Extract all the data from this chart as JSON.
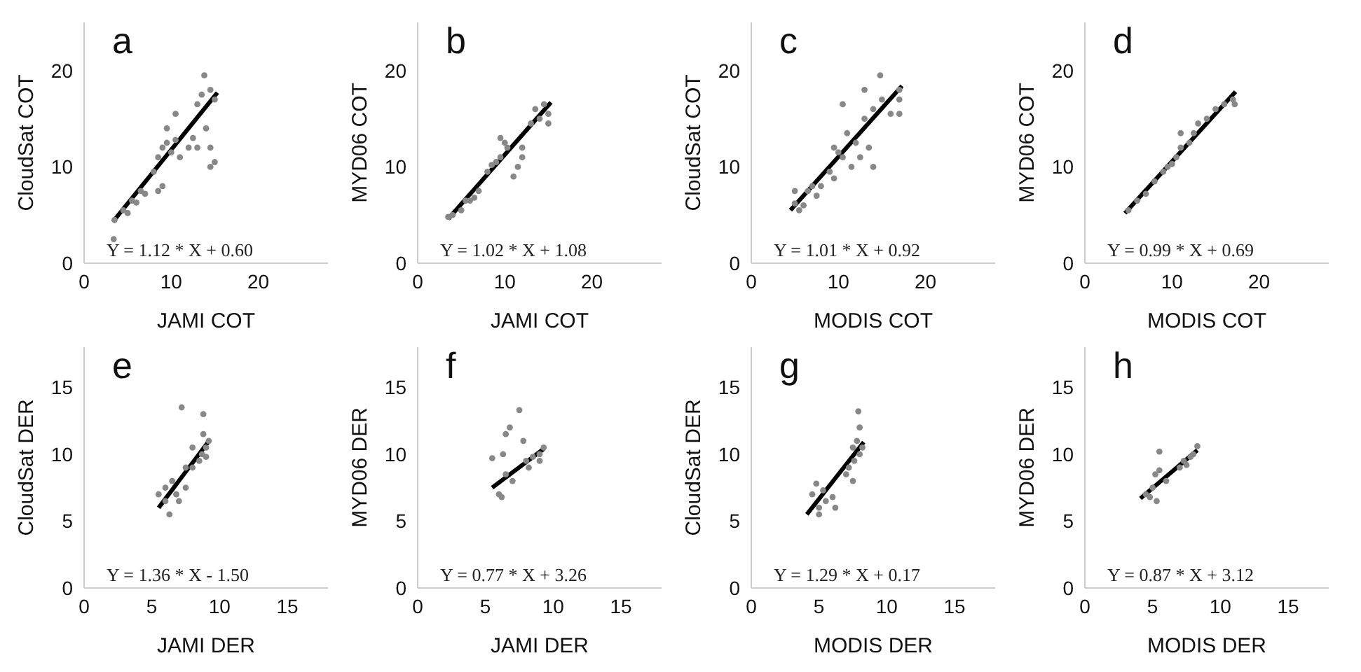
{
  "chart_data": [
    {
      "type": "scatter",
      "title": "a",
      "xlabel": "JAMI COT",
      "ylabel": "CloudSat COT",
      "annotations": [
        "Y = 1.12 * X + 0.60"
      ],
      "xlim": [
        0,
        28
      ],
      "ylim": [
        0,
        25
      ],
      "xticks": [
        0,
        10,
        20
      ],
      "yticks": [
        0,
        10,
        20
      ],
      "series": [
        {
          "type": "scatter",
          "color": "#888888",
          "marker": "circle",
          "x": [
            3.5,
            3.4,
            4.5,
            5,
            5.5,
            6,
            6.5,
            7,
            8,
            8.5,
            9,
            9,
            8.5,
            9.5,
            10,
            10.5,
            10.5,
            11,
            12,
            12.5,
            13,
            13.5,
            13.8,
            14,
            14.5,
            14.5,
            15,
            14.5,
            15,
            13,
            9.5
          ],
          "values": [
            4.5,
            2.5,
            5.5,
            5.2,
            6.5,
            6.3,
            7.5,
            7.2,
            9.5,
            11,
            12,
            8,
            7.5,
            12.5,
            11.5,
            12.8,
            15.5,
            11,
            12,
            13,
            16.5,
            17.5,
            19.5,
            14,
            18,
            12,
            10.5,
            10,
            17,
            12,
            14
          ]
        },
        {
          "type": "line",
          "color": "#000000",
          "marker": "none",
          "x": [
            3.3,
            15.3
          ],
          "values": [
            4.3,
            17.7
          ]
        }
      ]
    },
    {
      "type": "scatter",
      "title": "b",
      "xlabel": "JAMI COT",
      "ylabel": "MYD06 COT",
      "annotations": [
        "Y = 1.02 * X + 1.08"
      ],
      "xlim": [
        0,
        28
      ],
      "ylim": [
        0,
        25
      ],
      "xticks": [
        0,
        10,
        20
      ],
      "yticks": [
        0,
        10,
        20
      ],
      "series": [
        {
          "type": "scatter",
          "color": "#888888",
          "marker": "circle",
          "x": [
            3.5,
            4,
            5,
            5.5,
            6,
            6.5,
            7,
            8,
            8.5,
            9,
            9.5,
            10,
            10.3,
            9.5,
            11,
            11.5,
            12,
            12,
            13,
            13.5,
            14,
            14.5,
            15,
            15
          ],
          "values": [
            4.8,
            5,
            5.5,
            6.5,
            6.5,
            6.8,
            7.5,
            9.5,
            10.2,
            10.5,
            11,
            12.5,
            12,
            13,
            9,
            10,
            11,
            12,
            14.5,
            16,
            15,
            16.5,
            14.5,
            15.5
          ]
        },
        {
          "type": "line",
          "color": "#000000",
          "marker": "none",
          "x": [
            3.5,
            15.3
          ],
          "values": [
            4.6,
            16.7
          ]
        }
      ]
    },
    {
      "type": "scatter",
      "title": "c",
      "xlabel": "MODIS COT",
      "ylabel": "CloudSat COT",
      "annotations": [
        "Y = 1.01 * X + 0.92"
      ],
      "xlim": [
        0,
        28
      ],
      "ylim": [
        0,
        25
      ],
      "xticks": [
        0,
        10,
        20
      ],
      "yticks": [
        0,
        10,
        20
      ],
      "series": [
        {
          "type": "scatter",
          "color": "#888888",
          "marker": "circle",
          "x": [
            5,
            5.5,
            6,
            6.5,
            7,
            7.5,
            8,
            9,
            9.5,
            9.5,
            10,
            10.5,
            10.5,
            11,
            11.5,
            12,
            12.5,
            13,
            13,
            13.5,
            14,
            14,
            14.8,
            15,
            16,
            17,
            17,
            17,
            5
          ],
          "values": [
            7.5,
            5.5,
            6,
            7.5,
            8,
            7,
            8,
            9.5,
            8.8,
            12,
            11.5,
            16.5,
            11,
            13.5,
            10,
            12.5,
            11,
            15,
            18,
            12,
            10,
            16,
            19.5,
            17,
            15.5,
            18,
            17,
            15.5,
            6.2
          ]
        },
        {
          "type": "line",
          "color": "#000000",
          "marker": "none",
          "x": [
            4.5,
            17.3
          ],
          "values": [
            5.5,
            18.4
          ]
        }
      ]
    },
    {
      "type": "scatter",
      "title": "d",
      "xlabel": "MODIS COT",
      "ylabel": "MYD06 COT",
      "annotations": [
        "Y = 0.99 * X + 0.69"
      ],
      "xlim": [
        0,
        28
      ],
      "ylim": [
        0,
        25
      ],
      "xticks": [
        0,
        10,
        20
      ],
      "yticks": [
        0,
        10,
        20
      ],
      "series": [
        {
          "type": "scatter",
          "color": "#888888",
          "marker": "circle",
          "x": [
            5,
            6,
            7,
            8,
            9,
            10,
            10.5,
            11,
            11,
            12,
            12.5,
            13,
            14,
            15,
            16,
            17,
            17.2,
            9.5
          ],
          "values": [
            5.5,
            6.5,
            7.2,
            8.5,
            9.5,
            10.3,
            11,
            12,
            13.5,
            12.5,
            13.5,
            14.5,
            15,
            16,
            16.5,
            17,
            16.5,
            10
          ]
        },
        {
          "type": "line",
          "color": "#000000",
          "marker": "none",
          "x": [
            4.6,
            17.3
          ],
          "values": [
            5.2,
            17.8
          ]
        }
      ]
    },
    {
      "type": "scatter",
      "title": "e",
      "xlabel": "JAMI DER",
      "ylabel": "CloudSat DER",
      "annotations": [
        "Y = 1.36 * X - 1.50"
      ],
      "xlim": [
        0,
        18
      ],
      "ylim": [
        0,
        18
      ],
      "xticks": [
        0,
        5,
        10,
        15
      ],
      "yticks": [
        0,
        5,
        10,
        15
      ],
      "series": [
        {
          "type": "scatter",
          "color": "#888888",
          "marker": "circle",
          "x": [
            5.5,
            6,
            6,
            6.3,
            6.5,
            6.8,
            7,
            7.2,
            7.5,
            7.5,
            8,
            8,
            8.5,
            8.7,
            8.8,
            9,
            9.2,
            8.8,
            9
          ],
          "values": [
            7,
            6.5,
            7.5,
            5.5,
            8,
            7,
            6.5,
            13.5,
            9,
            7.5,
            10.5,
            9,
            9.5,
            10,
            13,
            10.5,
            11,
            11.5,
            9.8
          ]
        },
        {
          "type": "line",
          "color": "#000000",
          "marker": "none",
          "x": [
            5.5,
            9.3
          ],
          "values": [
            6,
            11.1
          ]
        }
      ]
    },
    {
      "type": "scatter",
      "title": "f",
      "xlabel": "JAMI DER",
      "ylabel": "MYD06 DER",
      "annotations": [
        "Y = 0.77 * X + 3.26"
      ],
      "xlim": [
        0,
        18
      ],
      "ylim": [
        0,
        18
      ],
      "xticks": [
        0,
        5,
        10,
        15
      ],
      "yticks": [
        0,
        5,
        10,
        15
      ],
      "series": [
        {
          "type": "scatter",
          "color": "#888888",
          "marker": "circle",
          "x": [
            5.5,
            6,
            6.2,
            6.3,
            6.5,
            6.8,
            7,
            7.5,
            7.8,
            8,
            8.2,
            8.5,
            9,
            9.3,
            9,
            6.5
          ],
          "values": [
            9.7,
            7,
            6.8,
            10,
            11.5,
            12,
            8,
            13.3,
            11,
            9.5,
            9,
            9.8,
            10,
            10.5,
            9.5,
            8.5
          ]
        },
        {
          "type": "line",
          "color": "#000000",
          "marker": "none",
          "x": [
            5.5,
            9.3
          ],
          "values": [
            7.5,
            10.4
          ]
        }
      ]
    },
    {
      "type": "scatter",
      "title": "g",
      "xlabel": "MODIS DER",
      "ylabel": "CloudSat DER",
      "annotations": [
        "Y = 1.29 * X + 0.17"
      ],
      "xlim": [
        0,
        18
      ],
      "ylim": [
        0,
        18
      ],
      "xticks": [
        0,
        5,
        10,
        15
      ],
      "yticks": [
        0,
        5,
        10,
        15
      ],
      "series": [
        {
          "type": "scatter",
          "color": "#888888",
          "marker": "circle",
          "x": [
            4.5,
            4.8,
            5,
            5,
            5.3,
            5.5,
            6,
            6.2,
            7,
            7.2,
            7.5,
            7.5,
            7.8,
            8,
            7.9,
            8,
            8.2,
            7.6
          ],
          "values": [
            7,
            7.8,
            6,
            5.5,
            7.3,
            6.5,
            6.8,
            6,
            8.5,
            9,
            8,
            10.5,
            11,
            10,
            13.2,
            12,
            10.5,
            9.5
          ]
        },
        {
          "type": "line",
          "color": "#000000",
          "marker": "none",
          "x": [
            4.1,
            8.3
          ],
          "values": [
            5.5,
            10.9
          ]
        }
      ]
    },
    {
      "type": "scatter",
      "title": "h",
      "xlabel": "MODIS DER",
      "ylabel": "MYD06 DER",
      "annotations": [
        "Y = 0.87 * X + 3.12"
      ],
      "xlim": [
        0,
        18
      ],
      "ylim": [
        0,
        18
      ],
      "xticks": [
        0,
        5,
        10,
        15
      ],
      "yticks": [
        0,
        5,
        10,
        15
      ],
      "series": [
        {
          "type": "scatter",
          "color": "#888888",
          "marker": "circle",
          "x": [
            4.5,
            4.8,
            5,
            5.3,
            5.5,
            5.2,
            5.5,
            6,
            7,
            7.3,
            7.5,
            8,
            8.3,
            7.8
          ],
          "values": [
            7,
            6.8,
            7.5,
            6.5,
            10.2,
            8.5,
            8.8,
            8,
            9,
            9.5,
            9.2,
            10,
            10.6,
            9.8
          ]
        },
        {
          "type": "line",
          "color": "#000000",
          "marker": "none",
          "x": [
            4.1,
            8.3
          ],
          "values": [
            6.7,
            10.3
          ]
        }
      ]
    }
  ]
}
